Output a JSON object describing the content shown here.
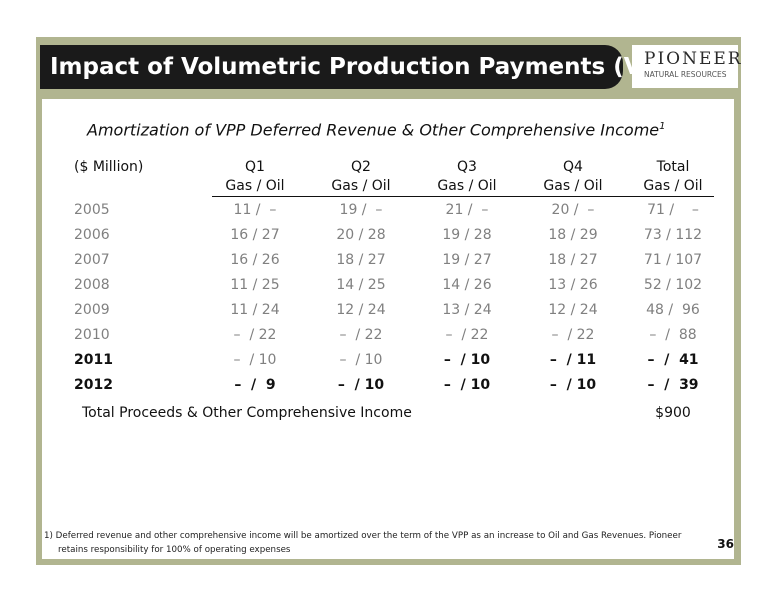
{
  "slide": {
    "title": "Impact of Volumetric Production Payments (VPP)",
    "logo": {
      "name": "PIONEER",
      "tagline": "NATURAL RESOURCES"
    },
    "subtitle": "Amortization of VPP Deferred Revenue & Other Comprehensive Income",
    "subtitle_footnote_mark": "1",
    "page_number": "36"
  },
  "table": {
    "units_label": "($ Million)",
    "columns": [
      {
        "label": "Q1",
        "sub": "Gas / Oil"
      },
      {
        "label": "Q2",
        "sub": "Gas / Oil"
      },
      {
        "label": "Q3",
        "sub": "Gas / Oil"
      },
      {
        "label": "Q4",
        "sub": "Gas / Oil"
      },
      {
        "label": "Total",
        "sub": "Gas / Oil"
      }
    ],
    "rows": [
      {
        "year": "2005",
        "q1": "11 /  –",
        "q2": "19 /  –",
        "q3": "21 /  –",
        "q4": "20 /  –",
        "total": "71 /    –"
      },
      {
        "year": "2006",
        "q1": "16 / 27",
        "q2": "20 / 28",
        "q3": "19 / 28",
        "q4": "18 / 29",
        "total": "73 / 112"
      },
      {
        "year": "2007",
        "q1": "16 / 26",
        "q2": "18 / 27",
        "q3": "19 / 27",
        "q4": "18 / 27",
        "total": "71 / 107"
      },
      {
        "year": "2008",
        "q1": "11 / 25",
        "q2": "14 / 25",
        "q3": "14 / 26",
        "q4": "13 / 26",
        "total": "52 / 102"
      },
      {
        "year": "2009",
        "q1": "11 / 24",
        "q2": "12 / 24",
        "q3": "13 / 24",
        "q4": "12 / 24",
        "total": "48 /  96"
      },
      {
        "year": "2010",
        "q1": "–  / 22",
        "q2": "–  / 22",
        "q3": "–  / 22",
        "q4": "–  / 22",
        "total": "–  /  88"
      },
      {
        "year": "2011",
        "q1": "–  / 10",
        "q2": "–  / 10",
        "q3": "–  / 10",
        "q4": "–  / 11",
        "total": "–  /  41"
      },
      {
        "year": "2012",
        "q1": "–  /  9",
        "q2": "–  / 10",
        "q3": "–  / 10",
        "q4": "–  / 10",
        "total": "–  /  39"
      }
    ],
    "total_label": "Total Proceeds & Other Comprehensive Income",
    "total_value": "$900"
  },
  "footnote": {
    "line1": "1) Deferred revenue and other comprehensive income will be amortized over the term of the VPP as an increase to Oil and Gas Revenues.  Pioneer",
    "line2": "retains responsibility for 100% of operating expenses"
  }
}
